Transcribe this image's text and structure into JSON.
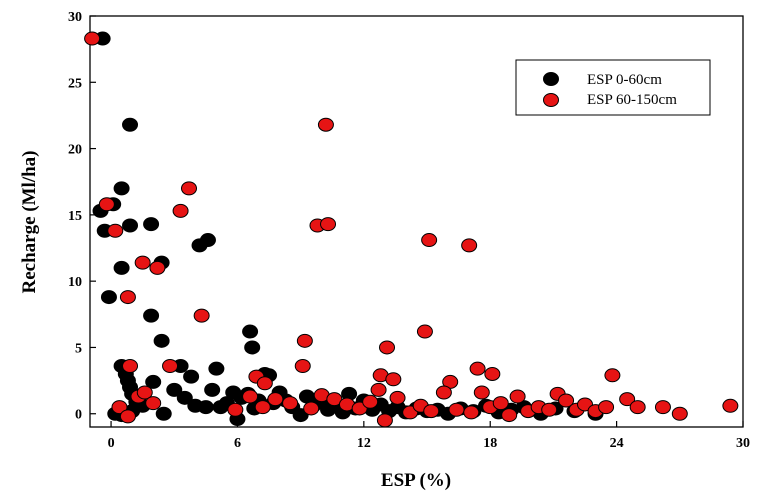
{
  "chart_data": {
    "type": "scatter",
    "xlabel": "ESP (%)",
    "ylabel": "Recharge (Ml/ha)",
    "xlim": [
      -1,
      30
    ],
    "ylim": [
      -1,
      30
    ],
    "xticks": [
      "0",
      "6",
      "12",
      "18",
      "24",
      "30"
    ],
    "yticks": [
      "0",
      "5",
      "10",
      "15",
      "20",
      "25",
      "30"
    ],
    "legend_position": "top-right",
    "series": [
      {
        "name": "ESP 0-60cm",
        "color": "#000000",
        "points": [
          [
            -0.4,
            28.3
          ],
          [
            0.9,
            21.8
          ],
          [
            0.5,
            17.0
          ],
          [
            -0.5,
            15.3
          ],
          [
            0.1,
            15.8
          ],
          [
            -0.3,
            13.8
          ],
          [
            0.9,
            14.2
          ],
          [
            1.9,
            14.3
          ],
          [
            0.5,
            11.0
          ],
          [
            2.4,
            11.4
          ],
          [
            4.6,
            13.1
          ],
          [
            4.2,
            12.7
          ],
          [
            -0.1,
            8.8
          ],
          [
            1.9,
            7.4
          ],
          [
            2.4,
            5.5
          ],
          [
            6.6,
            6.2
          ],
          [
            6.7,
            5.0
          ],
          [
            0.5,
            3.6
          ],
          [
            0.7,
            3.0
          ],
          [
            0.8,
            2.5
          ],
          [
            0.9,
            2.0
          ],
          [
            1.0,
            1.5
          ],
          [
            1.2,
            0.9
          ],
          [
            1.5,
            0.6
          ],
          [
            0.2,
            0.0
          ],
          [
            0.5,
            -0.1
          ],
          [
            1.0,
            0.2
          ],
          [
            2.0,
            2.4
          ],
          [
            2.5,
            0.0
          ],
          [
            3.0,
            1.8
          ],
          [
            3.3,
            3.6
          ],
          [
            3.5,
            1.2
          ],
          [
            3.8,
            2.8
          ],
          [
            4.0,
            0.6
          ],
          [
            4.5,
            0.5
          ],
          [
            4.8,
            1.8
          ],
          [
            5.0,
            3.4
          ],
          [
            5.2,
            0.5
          ],
          [
            5.5,
            0.8
          ],
          [
            5.8,
            1.6
          ],
          [
            6.0,
            -0.4
          ],
          [
            6.2,
            1.2
          ],
          [
            6.5,
            1.5
          ],
          [
            6.8,
            0.4
          ],
          [
            7.0,
            1.0
          ],
          [
            7.3,
            3.0
          ],
          [
            7.5,
            2.9
          ],
          [
            7.7,
            0.8
          ],
          [
            8.0,
            1.6
          ],
          [
            8.3,
            1.0
          ],
          [
            8.6,
            0.5
          ],
          [
            9.0,
            -0.1
          ],
          [
            9.3,
            1.3
          ],
          [
            9.6,
            0.6
          ],
          [
            10.0,
            1.0
          ],
          [
            10.3,
            0.3
          ],
          [
            10.6,
            0.8
          ],
          [
            11.0,
            0.1
          ],
          [
            11.3,
            1.5
          ],
          [
            11.6,
            0.4
          ],
          [
            12.0,
            1.0
          ],
          [
            12.4,
            0.3
          ],
          [
            12.8,
            0.7
          ],
          [
            13.2,
            0.2
          ],
          [
            13.6,
            0.5
          ],
          [
            14.0,
            0.1
          ],
          [
            14.5,
            0.4
          ],
          [
            15.0,
            0.2
          ],
          [
            15.5,
            0.3
          ],
          [
            16.0,
            0.0
          ],
          [
            16.6,
            0.4
          ],
          [
            17.2,
            0.2
          ],
          [
            17.8,
            0.6
          ],
          [
            18.4,
            0.1
          ],
          [
            19.0,
            0.3
          ],
          [
            19.6,
            0.5
          ],
          [
            20.4,
            0.0
          ],
          [
            21.1,
            0.4
          ],
          [
            22.0,
            0.2
          ],
          [
            23.0,
            0.0
          ]
        ]
      },
      {
        "name": "ESP 60-150cm",
        "color": "#e61414",
        "points": [
          [
            -0.9,
            28.3
          ],
          [
            10.2,
            21.8
          ],
          [
            3.7,
            17.0
          ],
          [
            -0.2,
            15.8
          ],
          [
            3.3,
            15.3
          ],
          [
            0.2,
            13.8
          ],
          [
            9.8,
            14.2
          ],
          [
            10.3,
            14.3
          ],
          [
            15.1,
            13.1
          ],
          [
            17.0,
            12.7
          ],
          [
            1.5,
            11.4
          ],
          [
            2.2,
            11.0
          ],
          [
            0.8,
            8.8
          ],
          [
            4.3,
            7.4
          ],
          [
            9.2,
            5.5
          ],
          [
            13.1,
            5.0
          ],
          [
            14.9,
            6.2
          ],
          [
            17.4,
            3.4
          ],
          [
            18.1,
            3.0
          ],
          [
            23.8,
            2.9
          ],
          [
            0.9,
            3.6
          ],
          [
            2.8,
            3.6
          ],
          [
            9.1,
            3.6
          ],
          [
            12.8,
            2.9
          ],
          [
            13.4,
            2.6
          ],
          [
            6.9,
            2.8
          ],
          [
            7.3,
            2.3
          ],
          [
            16.1,
            2.4
          ],
          [
            12.7,
            1.8
          ],
          [
            15.8,
            1.6
          ],
          [
            0.4,
            0.5
          ],
          [
            0.8,
            -0.2
          ],
          [
            1.3,
            1.3
          ],
          [
            1.6,
            1.6
          ],
          [
            2.0,
            0.8
          ],
          [
            5.9,
            0.3
          ],
          [
            6.6,
            1.3
          ],
          [
            7.2,
            0.5
          ],
          [
            7.8,
            1.1
          ],
          [
            8.5,
            0.8
          ],
          [
            9.5,
            0.4
          ],
          [
            10.0,
            1.4
          ],
          [
            10.6,
            1.1
          ],
          [
            11.2,
            0.7
          ],
          [
            11.8,
            0.4
          ],
          [
            12.3,
            0.9
          ],
          [
            13.0,
            -0.5
          ],
          [
            13.6,
            1.2
          ],
          [
            14.2,
            0.1
          ],
          [
            14.7,
            0.6
          ],
          [
            15.2,
            0.2
          ],
          [
            16.4,
            0.3
          ],
          [
            17.1,
            0.1
          ],
          [
            17.6,
            1.6
          ],
          [
            18.0,
            0.5
          ],
          [
            18.5,
            0.8
          ],
          [
            18.9,
            -0.1
          ],
          [
            19.3,
            1.3
          ],
          [
            19.8,
            0.2
          ],
          [
            20.3,
            0.5
          ],
          [
            20.8,
            0.3
          ],
          [
            21.2,
            1.5
          ],
          [
            21.6,
            1.0
          ],
          [
            22.1,
            0.3
          ],
          [
            22.5,
            0.7
          ],
          [
            23.0,
            0.2
          ],
          [
            23.5,
            0.5
          ],
          [
            24.5,
            1.1
          ],
          [
            25.0,
            0.5
          ],
          [
            26.2,
            0.5
          ],
          [
            27.0,
            0.0
          ],
          [
            29.4,
            0.6
          ]
        ]
      }
    ]
  }
}
